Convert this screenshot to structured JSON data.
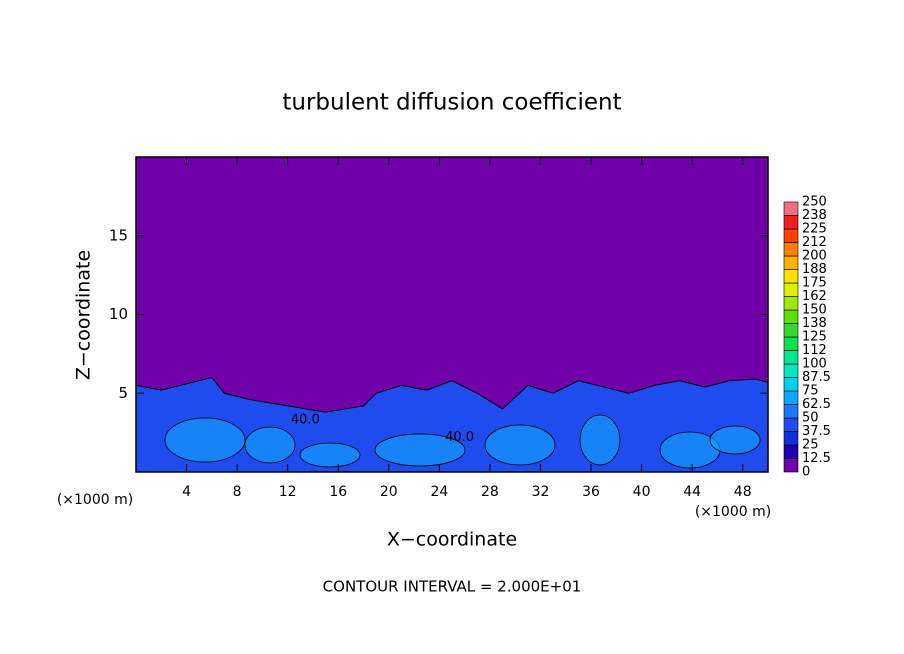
{
  "chart_data": {
    "type": "contour",
    "title": "turbulent diffusion coefficient",
    "xlabel": "X−coordinate",
    "ylabel": "Z−coordinate",
    "unit_label": "(×1000 m)",
    "footer": "CONTOUR INTERVAL = 2.000E+01",
    "xlim": [
      0,
      50
    ],
    "xticks": [
      4,
      8,
      12,
      16,
      20,
      24,
      28,
      32,
      36,
      40,
      44,
      48
    ],
    "ylim": [
      0,
      20
    ],
    "yticks": [
      5,
      10,
      15
    ],
    "background_color": "#7000a8",
    "layer": {
      "color": "#1e4cf0",
      "x": [
        0,
        2,
        4,
        6,
        7,
        9,
        12,
        15,
        18,
        19,
        21,
        23,
        25,
        27,
        29,
        31,
        33,
        35,
        37,
        39,
        41,
        43,
        45,
        47,
        49,
        50
      ],
      "z": [
        5.5,
        5.2,
        5.6,
        6.0,
        5.0,
        4.6,
        4.2,
        3.8,
        4.2,
        5.0,
        5.5,
        5.2,
        5.8,
        5.0,
        4.0,
        5.5,
        5.0,
        5.8,
        5.4,
        5.0,
        5.5,
        5.8,
        5.4,
        5.8,
        5.9,
        5.7
      ]
    },
    "annotations": [
      {
        "text": "40.0",
        "x": 13.4,
        "z": 3.3
      },
      {
        "text": "40.0",
        "x": 25.6,
        "z": 2.2
      }
    ],
    "colorbar": {
      "ticks": [
        0,
        12.5,
        25,
        37.5,
        50,
        62.5,
        75,
        87.5,
        100,
        {
          "value": 112.5,
          "label": "112"
        },
        125,
        {
          "value": 137.5,
          "label": "138"
        },
        150,
        {
          "value": 162.5,
          "label": "162"
        },
        175,
        {
          "value": 187.5,
          "label": "188"
        },
        200,
        {
          "value": 212.5,
          "label": "212"
        },
        225,
        {
          "value": 237.5,
          "label": "238"
        },
        250
      ],
      "colors": [
        "#7000a8",
        "#2000b0",
        "#1030e0",
        "#1e4cf0",
        "#1e78ff",
        "#10a8ff",
        "#00d0f0",
        "#00e8c0",
        "#00e890",
        "#10e050",
        "#30d830",
        "#60e000",
        "#a0e800",
        "#e0f000",
        "#ffe000",
        "#ffb000",
        "#ff8000",
        "#ff4000",
        "#f02020",
        "#f07080"
      ]
    }
  }
}
